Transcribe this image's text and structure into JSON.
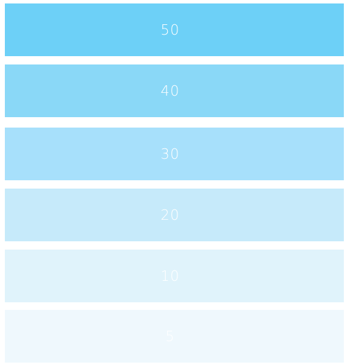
{
  "swatches": [
    {
      "label": "50",
      "color": "#6dd0f7"
    },
    {
      "label": "40",
      "color": "#8ad8f7"
    },
    {
      "label": "30",
      "color": "#a7e0fb"
    },
    {
      "label": "20",
      "color": "#c6eafa"
    },
    {
      "label": "10",
      "color": "#e0f3fb"
    },
    {
      "label": "5",
      "color": "#eff8fd"
    }
  ]
}
